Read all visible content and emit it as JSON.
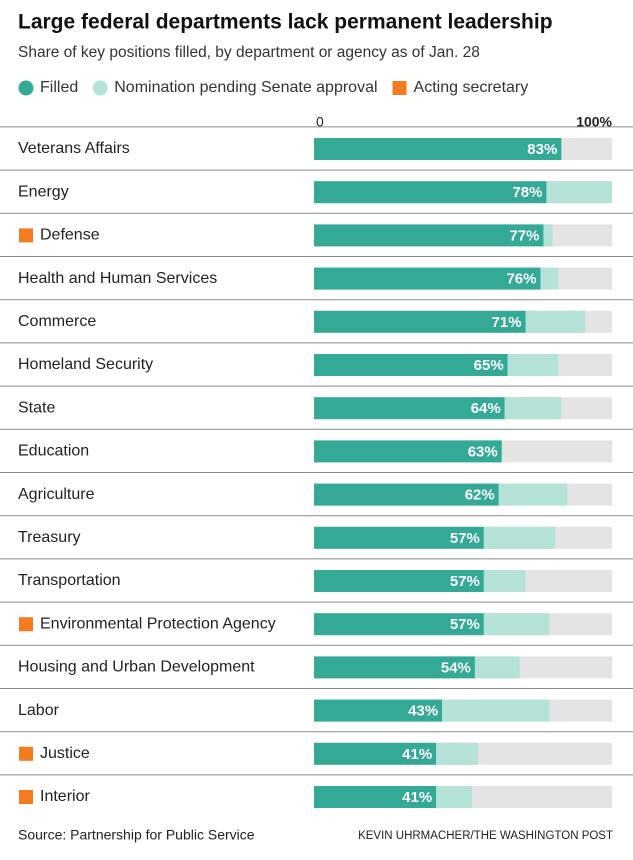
{
  "chart_data": {
    "type": "stacked_barh",
    "title": "Large federal departments lack permanent leadership",
    "subtitle": "Share of key positions filled, by department or agency as of Jan. 28",
    "categories": [
      "Veterans Affairs",
      "Energy",
      "Defense",
      "Health and Human Services",
      "Commerce",
      "Homeland Security",
      "State",
      "Education",
      "Agriculture",
      "Treasury",
      "Transportation",
      "Environmental Protection Agency",
      "Housing and Urban Development",
      "Labor",
      "Justice",
      "Interior"
    ],
    "series": [
      {
        "name": "Filled",
        "color": "#34a996",
        "values": [
          83,
          78,
          77,
          76,
          71,
          65,
          64,
          63,
          62,
          57,
          57,
          57,
          54,
          43,
          41,
          41
        ],
        "value_labels": [
          "83%",
          "78%",
          "77%",
          "76%",
          "71%",
          "65%",
          "64%",
          "63%",
          "62%",
          "57%",
          "57%",
          "57%",
          "54%",
          "43%",
          "41%",
          "41%"
        ]
      },
      {
        "name": "Nomination pending Senate approval",
        "color": "#b4e2d7",
        "values": [
          0,
          22,
          3,
          6,
          20,
          17,
          19,
          0,
          23,
          24,
          14,
          22,
          15,
          36,
          14,
          12
        ]
      }
    ],
    "acting": {
      "name": "Acting secretary",
      "color": "#f47b20",
      "flags": [
        false,
        false,
        true,
        false,
        false,
        false,
        false,
        false,
        false,
        false,
        false,
        true,
        false,
        false,
        true,
        true
      ]
    },
    "xlim": [
      0,
      100
    ],
    "xticks": [
      0,
      {
        "value": 100,
        "label": "100%"
      }
    ],
    "source": "Source: Partnership for Public Service",
    "credit": "KEVIN UHRMACHER/THE WASHINGTON POST"
  }
}
